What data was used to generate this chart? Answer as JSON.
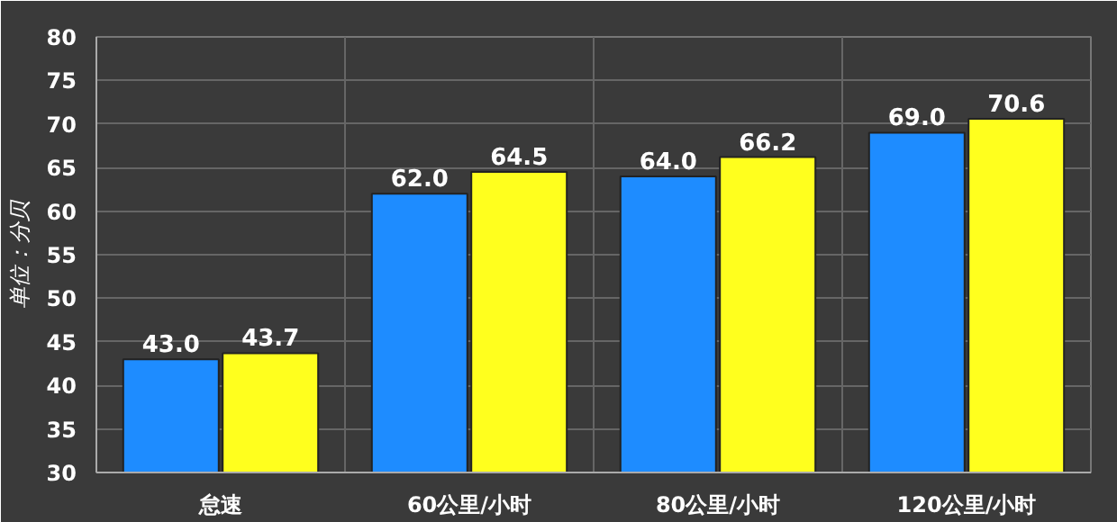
{
  "chart_data": {
    "type": "bar",
    "ylabel": "单位：分贝",
    "categories": [
      "怠速",
      "60公里/小时",
      "80公里/小时",
      "120公里/小时"
    ],
    "series": [
      {
        "color": "#1e8cff",
        "values": [
          43.0,
          62.0,
          64.0,
          69.0
        ],
        "value_labels": [
          "43.0",
          "62.0",
          "64.0",
          "69.0"
        ]
      },
      {
        "color": "#ffff1e",
        "values": [
          43.7,
          64.5,
          66.2,
          70.6
        ],
        "value_labels": [
          "43.7",
          "64.5",
          "66.2",
          "70.6"
        ]
      }
    ],
    "ylim": [
      30,
      80
    ],
    "yticks": [
      30,
      35,
      40,
      45,
      50,
      55,
      60,
      65,
      70,
      75,
      80
    ],
    "grid": true
  }
}
